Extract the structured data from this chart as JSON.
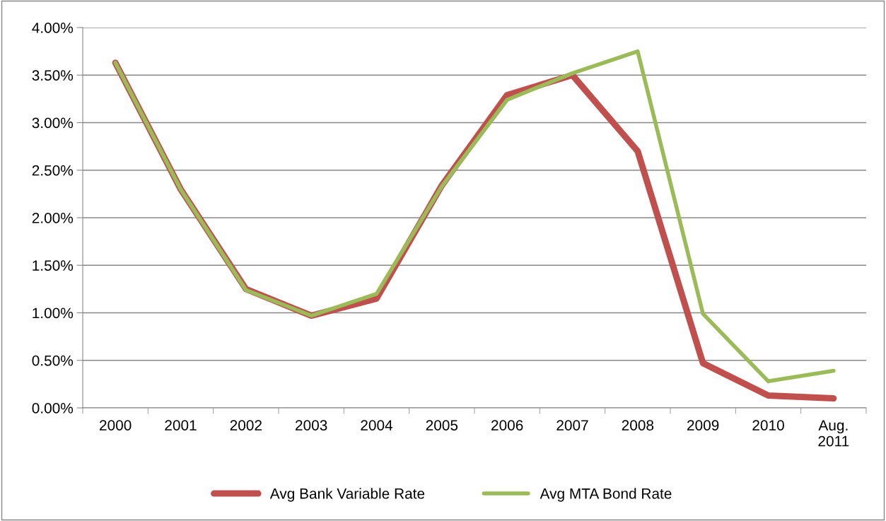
{
  "chart_data": {
    "type": "line",
    "categories": [
      "2000",
      "2001",
      "2002",
      "2003",
      "2004",
      "2005",
      "2006",
      "2007",
      "2008",
      "2009",
      "2010",
      "Aug.\n2011"
    ],
    "series": [
      {
        "name": "Avg Bank Variable Rate",
        "color": "#c0504d",
        "values": [
          3.63,
          2.3,
          1.25,
          0.97,
          1.15,
          2.34,
          3.29,
          3.5,
          2.7,
          0.47,
          0.13,
          0.1
        ]
      },
      {
        "name": "Avg MTA Bond Rate",
        "color": "#9bbb59",
        "values": [
          3.63,
          2.3,
          1.24,
          0.97,
          1.2,
          2.33,
          3.24,
          3.52,
          3.75,
          0.99,
          0.28,
          0.39
        ]
      }
    ],
    "ylim": [
      0,
      4
    ],
    "yticks": [
      {
        "value": 0,
        "label": "0.00%"
      },
      {
        "value": 0.5,
        "label": "0.50%"
      },
      {
        "value": 1,
        "label": "1.00%"
      },
      {
        "value": 1.5,
        "label": "1.50%"
      },
      {
        "value": 2,
        "label": "2.00%"
      },
      {
        "value": 2.5,
        "label": "2.50%"
      },
      {
        "value": 3,
        "label": "3.00%"
      },
      {
        "value": 3.5,
        "label": "3.50%"
      },
      {
        "value": 4,
        "label": "4.00%"
      }
    ],
    "grid": "y",
    "legend": "bottom",
    "marker": "none",
    "line_style": "solid"
  }
}
